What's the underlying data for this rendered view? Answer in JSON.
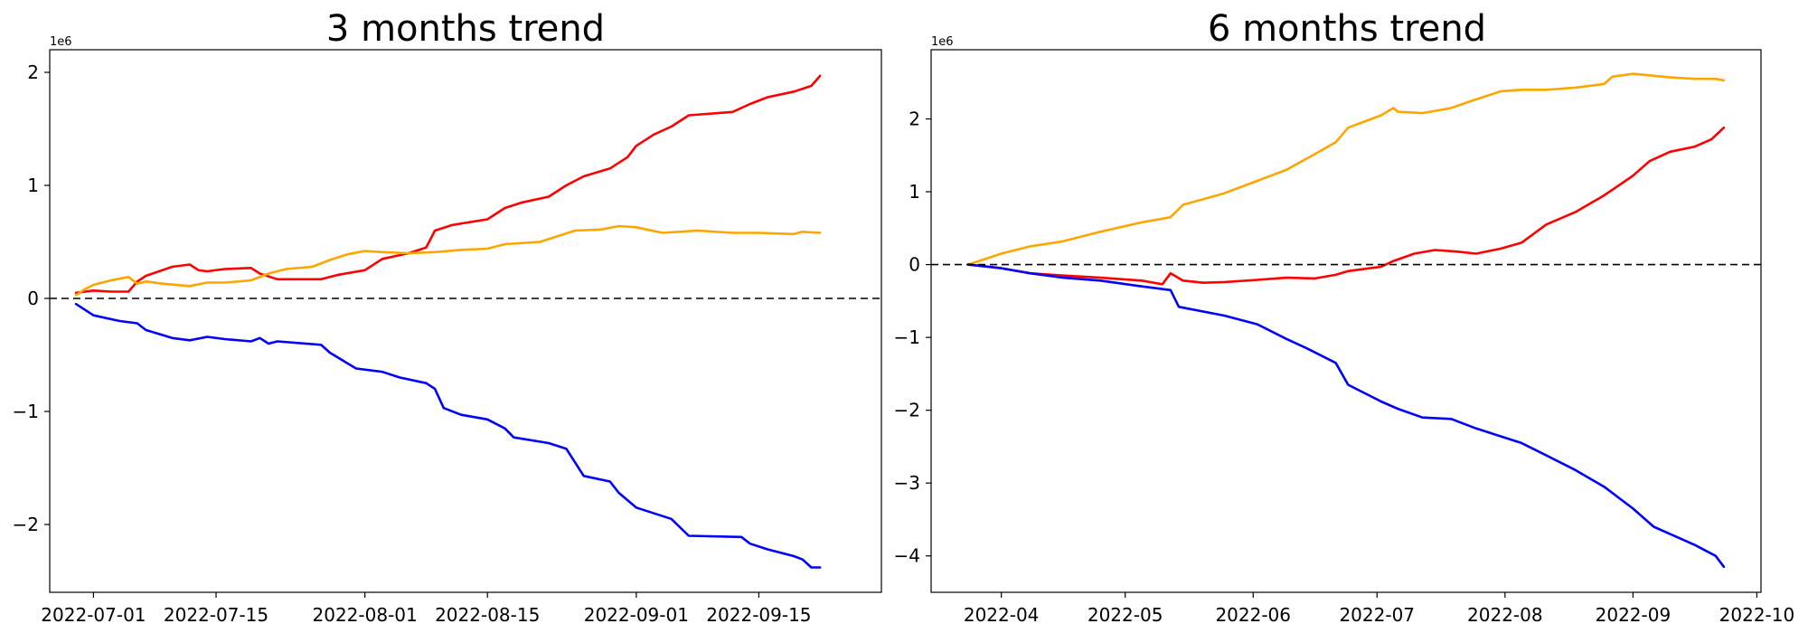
{
  "figure": {
    "background": "#ffffff"
  },
  "chart_data": [
    {
      "type": "line",
      "title": "3 months trend",
      "xlabel": "",
      "ylabel": "",
      "x_type": "date",
      "xlim": [
        "2022-06-26",
        "2022-09-29"
      ],
      "ylim": [
        -2.6,
        2.2
      ],
      "y_scale_label": "1e6",
      "x_ticks": [
        "2022-07-01",
        "2022-07-15",
        "2022-08-01",
        "2022-08-15",
        "2022-09-01",
        "2022-09-15"
      ],
      "y_ticks": [
        -2,
        -1,
        0,
        1,
        2
      ],
      "y_tick_labels": [
        "−2",
        "−1",
        "0",
        "1",
        "2"
      ],
      "baseline": {
        "y": 0,
        "style": "dashed",
        "color": "#000000"
      },
      "grid": false,
      "legend": false,
      "series": [
        {
          "color": "#ff0000",
          "x": [
            "2022-06-29",
            "2022-07-01",
            "2022-07-03",
            "2022-07-05",
            "2022-07-06",
            "2022-07-07",
            "2022-07-10",
            "2022-07-12",
            "2022-07-13",
            "2022-07-14",
            "2022-07-16",
            "2022-07-19",
            "2022-07-20",
            "2022-07-22",
            "2022-07-27",
            "2022-07-29",
            "2022-08-01",
            "2022-08-03",
            "2022-08-06",
            "2022-08-08",
            "2022-08-09",
            "2022-08-11",
            "2022-08-15",
            "2022-08-17",
            "2022-08-19",
            "2022-08-22",
            "2022-08-24",
            "2022-08-26",
            "2022-08-29",
            "2022-08-31",
            "2022-09-01",
            "2022-09-03",
            "2022-09-05",
            "2022-09-07",
            "2022-09-12",
            "2022-09-14",
            "2022-09-16",
            "2022-09-19",
            "2022-09-21",
            "2022-09-22"
          ],
          "values": [
            0.05,
            0.07,
            0.06,
            0.06,
            0.15,
            0.2,
            0.28,
            0.3,
            0.25,
            0.24,
            0.26,
            0.27,
            0.22,
            0.17,
            0.17,
            0.21,
            0.25,
            0.35,
            0.4,
            0.45,
            0.6,
            0.65,
            0.7,
            0.8,
            0.85,
            0.9,
            1.0,
            1.08,
            1.15,
            1.25,
            1.35,
            1.45,
            1.52,
            1.62,
            1.65,
            1.72,
            1.78,
            1.83,
            1.88,
            1.97
          ]
        },
        {
          "color": "#ffa500",
          "x": [
            "2022-06-29",
            "2022-06-30",
            "2022-07-01",
            "2022-07-03",
            "2022-07-05",
            "2022-07-06",
            "2022-07-07",
            "2022-07-09",
            "2022-07-12",
            "2022-07-14",
            "2022-07-16",
            "2022-07-19",
            "2022-07-21",
            "2022-07-23",
            "2022-07-26",
            "2022-07-28",
            "2022-07-30",
            "2022-08-01",
            "2022-08-03",
            "2022-08-06",
            "2022-08-09",
            "2022-08-12",
            "2022-08-15",
            "2022-08-17",
            "2022-08-21",
            "2022-08-23",
            "2022-08-25",
            "2022-08-28",
            "2022-08-30",
            "2022-09-01",
            "2022-09-04",
            "2022-09-08",
            "2022-09-12",
            "2022-09-15",
            "2022-09-19",
            "2022-09-20",
            "2022-09-22"
          ],
          "values": [
            0.03,
            0.08,
            0.12,
            0.16,
            0.19,
            0.13,
            0.15,
            0.13,
            0.11,
            0.14,
            0.14,
            0.16,
            0.22,
            0.26,
            0.28,
            0.34,
            0.39,
            0.42,
            0.41,
            0.4,
            0.41,
            0.43,
            0.44,
            0.48,
            0.5,
            0.55,
            0.6,
            0.61,
            0.64,
            0.63,
            0.58,
            0.6,
            0.58,
            0.58,
            0.57,
            0.59,
            0.58
          ]
        },
        {
          "color": "#0000ff",
          "x": [
            "2022-06-29",
            "2022-07-01",
            "2022-07-04",
            "2022-07-06",
            "2022-07-07",
            "2022-07-10",
            "2022-07-12",
            "2022-07-14",
            "2022-07-16",
            "2022-07-19",
            "2022-07-20",
            "2022-07-21",
            "2022-07-22",
            "2022-07-27",
            "2022-07-28",
            "2022-07-31",
            "2022-08-03",
            "2022-08-05",
            "2022-08-08",
            "2022-08-09",
            "2022-08-10",
            "2022-08-12",
            "2022-08-15",
            "2022-08-17",
            "2022-08-18",
            "2022-08-22",
            "2022-08-24",
            "2022-08-25",
            "2022-08-26",
            "2022-08-29",
            "2022-08-30",
            "2022-09-01",
            "2022-09-05",
            "2022-09-07",
            "2022-09-13",
            "2022-09-14",
            "2022-09-16",
            "2022-09-19",
            "2022-09-20",
            "2022-09-21",
            "2022-09-22"
          ],
          "values": [
            -0.05,
            -0.15,
            -0.2,
            -0.22,
            -0.28,
            -0.35,
            -0.37,
            -0.34,
            -0.36,
            -0.38,
            -0.35,
            -0.4,
            -0.38,
            -0.41,
            -0.48,
            -0.62,
            -0.65,
            -0.7,
            -0.75,
            -0.8,
            -0.97,
            -1.03,
            -1.07,
            -1.15,
            -1.23,
            -1.28,
            -1.33,
            -1.45,
            -1.57,
            -1.62,
            -1.72,
            -1.85,
            -1.95,
            -2.1,
            -2.11,
            -2.17,
            -2.22,
            -2.28,
            -2.31,
            -2.38,
            -2.38
          ]
        }
      ]
    },
    {
      "type": "line",
      "title": "6 months trend",
      "xlabel": "",
      "ylabel": "",
      "x_type": "date",
      "xlim": [
        "2022-03-15",
        "2022-10-02"
      ],
      "ylim": [
        -4.5,
        2.95
      ],
      "y_scale_label": "1e6",
      "x_ticks": [
        "2022-04",
        "2022-05",
        "2022-06",
        "2022-07",
        "2022-08",
        "2022-09",
        "2022-10"
      ],
      "y_ticks": [
        -4,
        -3,
        -2,
        -1,
        0,
        1,
        2
      ],
      "y_tick_labels": [
        "−4",
        "−3",
        "−2",
        "−1",
        "0",
        "1",
        "2"
      ],
      "baseline": {
        "y": 0,
        "style": "dashed",
        "color": "#000000"
      },
      "grid": false,
      "legend": false,
      "series": [
        {
          "color": "#ffa500",
          "x": [
            "2022-03-24",
            "2022-04-01",
            "2022-04-08",
            "2022-04-16",
            "2022-04-25",
            "2022-05-05",
            "2022-05-12",
            "2022-05-15",
            "2022-05-25",
            "2022-06-02",
            "2022-06-09",
            "2022-06-16",
            "2022-06-21",
            "2022-06-24",
            "2022-07-02",
            "2022-07-05",
            "2022-07-06",
            "2022-07-12",
            "2022-07-19",
            "2022-07-24",
            "2022-07-31",
            "2022-08-05",
            "2022-08-11",
            "2022-08-18",
            "2022-08-25",
            "2022-08-27",
            "2022-09-01",
            "2022-09-10",
            "2022-09-16",
            "2022-09-21",
            "2022-09-23"
          ],
          "values": [
            0.0,
            0.15,
            0.25,
            0.32,
            0.45,
            0.58,
            0.65,
            0.82,
            0.98,
            1.15,
            1.3,
            1.52,
            1.68,
            1.88,
            2.05,
            2.15,
            2.1,
            2.08,
            2.15,
            2.25,
            2.38,
            2.4,
            2.4,
            2.43,
            2.48,
            2.58,
            2.62,
            2.57,
            2.55,
            2.55,
            2.53
          ]
        },
        {
          "color": "#ff0000",
          "x": [
            "2022-03-24",
            "2022-04-01",
            "2022-04-08",
            "2022-04-16",
            "2022-04-25",
            "2022-05-05",
            "2022-05-10",
            "2022-05-12",
            "2022-05-15",
            "2022-05-20",
            "2022-05-25",
            "2022-06-02",
            "2022-06-09",
            "2022-06-16",
            "2022-06-21",
            "2022-06-24",
            "2022-07-02",
            "2022-07-05",
            "2022-07-10",
            "2022-07-15",
            "2022-07-20",
            "2022-07-25",
            "2022-07-31",
            "2022-08-05",
            "2022-08-11",
            "2022-08-18",
            "2022-08-25",
            "2022-09-01",
            "2022-09-05",
            "2022-09-10",
            "2022-09-16",
            "2022-09-20",
            "2022-09-23"
          ],
          "values": [
            0.0,
            -0.05,
            -0.12,
            -0.15,
            -0.18,
            -0.22,
            -0.27,
            -0.12,
            -0.22,
            -0.25,
            -0.24,
            -0.21,
            -0.18,
            -0.19,
            -0.14,
            -0.09,
            -0.03,
            0.05,
            0.15,
            0.2,
            0.18,
            0.15,
            0.22,
            0.3,
            0.55,
            0.72,
            0.95,
            1.22,
            1.42,
            1.55,
            1.62,
            1.72,
            1.88
          ]
        },
        {
          "color": "#0000ff",
          "x": [
            "2022-03-24",
            "2022-04-01",
            "2022-04-08",
            "2022-04-16",
            "2022-04-25",
            "2022-05-05",
            "2022-05-12",
            "2022-05-14",
            "2022-05-25",
            "2022-06-02",
            "2022-06-09",
            "2022-06-14",
            "2022-06-21",
            "2022-06-24",
            "2022-07-02",
            "2022-07-06",
            "2022-07-12",
            "2022-07-19",
            "2022-07-25",
            "2022-08-05",
            "2022-08-11",
            "2022-08-18",
            "2022-08-25",
            "2022-09-01",
            "2022-09-06",
            "2022-09-10",
            "2022-09-16",
            "2022-09-21",
            "2022-09-23"
          ],
          "values": [
            0.0,
            -0.05,
            -0.12,
            -0.18,
            -0.22,
            -0.3,
            -0.35,
            -0.58,
            -0.7,
            -0.82,
            -1.02,
            -1.15,
            -1.35,
            -1.65,
            -1.88,
            -1.98,
            -2.1,
            -2.12,
            -2.25,
            -2.45,
            -2.62,
            -2.82,
            -3.05,
            -3.35,
            -3.6,
            -3.7,
            -3.85,
            -4.0,
            -4.15
          ]
        }
      ]
    }
  ]
}
